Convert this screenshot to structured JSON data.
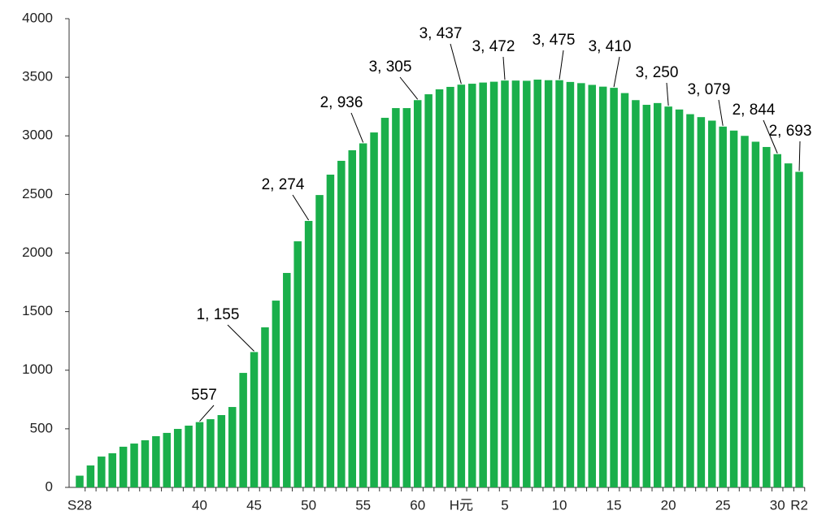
{
  "chart_data": {
    "type": "bar",
    "categories": [
      "S28",
      null,
      null,
      null,
      null,
      null,
      null,
      null,
      null,
      null,
      null,
      "40",
      null,
      null,
      null,
      null,
      "45",
      null,
      null,
      null,
      null,
      "50",
      null,
      null,
      null,
      null,
      "55",
      null,
      null,
      null,
      null,
      "60",
      null,
      null,
      null,
      "H元",
      null,
      null,
      null,
      "5",
      null,
      null,
      null,
      null,
      "10",
      null,
      null,
      null,
      null,
      "15",
      null,
      null,
      null,
      null,
      "20",
      null,
      null,
      null,
      null,
      "25",
      null,
      null,
      null,
      null,
      "30",
      null,
      "R2"
    ],
    "values": [
      100,
      187,
      263,
      291,
      347,
      374,
      402,
      437,
      465,
      499,
      527,
      557,
      582,
      617,
      686,
      977,
      1155,
      1366,
      1594,
      1830,
      2100,
      2274,
      2495,
      2669,
      2787,
      2877,
      2936,
      3029,
      3154,
      3237,
      3237,
      3305,
      3355,
      3397,
      3418,
      3437,
      3445,
      3455,
      3462,
      3472,
      3472,
      3470,
      3480,
      3475,
      3475,
      3460,
      3450,
      3435,
      3420,
      3410,
      3365,
      3305,
      3265,
      3280,
      3250,
      3225,
      3185,
      3160,
      3130,
      3079,
      3045,
      3000,
      2950,
      2905,
      2844,
      2765,
      2693
    ],
    "value_labels": [
      null,
      null,
      null,
      null,
      null,
      null,
      null,
      null,
      null,
      null,
      null,
      "557",
      null,
      null,
      null,
      null,
      "1, 155",
      null,
      null,
      null,
      null,
      "2, 274",
      null,
      null,
      null,
      null,
      "2, 936",
      null,
      null,
      null,
      null,
      "3, 305",
      null,
      null,
      null,
      "3, 437",
      null,
      null,
      null,
      "3, 472",
      null,
      null,
      null,
      null,
      "3, 475",
      null,
      null,
      null,
      null,
      "3, 410",
      null,
      null,
      null,
      null,
      "3, 250",
      null,
      null,
      null,
      null,
      "3, 079",
      null,
      null,
      null,
      null,
      "2, 844",
      null,
      "2, 693"
    ],
    "color": "#1aaf4b",
    "ylim": [
      0,
      4000
    ],
    "yticks": [
      0,
      500,
      1000,
      1500,
      2000,
      2500,
      3000,
      3500,
      4000
    ]
  }
}
